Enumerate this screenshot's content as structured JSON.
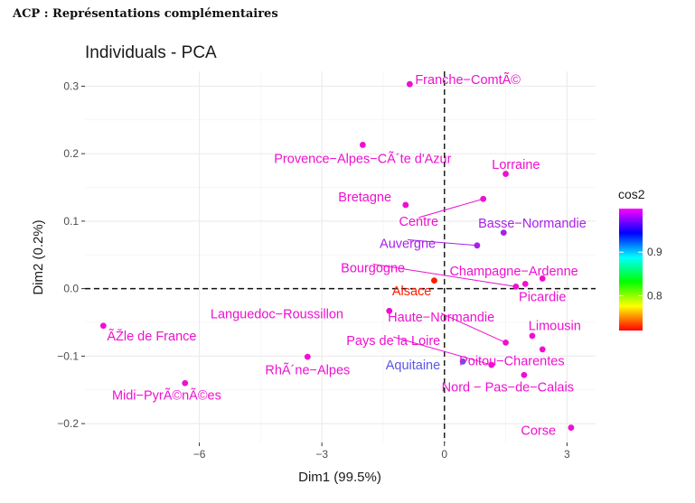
{
  "heading": "ACP : Représentations complémentaires",
  "chart_data": {
    "type": "scatter",
    "title": "Individuals - PCA",
    "xlabel": "Dim1 (99.5%)",
    "ylabel": "Dim2 (0.2%)",
    "xlim": [
      -8.8,
      3.7
    ],
    "ylim": [
      -0.228,
      0.322
    ],
    "xticks": [
      -6,
      -3,
      0,
      3
    ],
    "xtick_labels": [
      "−6",
      "−3",
      "0",
      "3"
    ],
    "yticks": [
      -0.2,
      -0.1,
      0.0,
      0.1,
      0.2,
      0.3
    ],
    "ytick_labels": [
      "−0.2",
      "−0.1",
      "0.0",
      "0.1",
      "0.2",
      "0.3"
    ],
    "grid": true,
    "reference_lines": {
      "x": 0,
      "y": 0,
      "style": "dashed"
    },
    "legend": {
      "title": "cos2",
      "position": "right",
      "range": [
        0.72,
        1.0
      ],
      "ticks": [
        0.8,
        0.9
      ],
      "tick_labels": [
        "0.8",
        "0.9"
      ],
      "gradient": [
        "#FF0000",
        "#FFFF00",
        "#00FF00",
        "#00FFFF",
        "#0000FF",
        "#FF00FF"
      ]
    },
    "points": [
      {
        "name": "Franche−ComtÃ©",
        "x": -0.85,
        "y": 0.303,
        "color": "#ee10d0",
        "lx": -0.85,
        "ly": 0.31,
        "anchor": "start",
        "dx": 6
      },
      {
        "name": "Provence−Alpes−CÃ´te d'Azur",
        "x": -2.0,
        "y": 0.213,
        "color": "#ee10d0",
        "lx": -2.0,
        "ly": 0.193,
        "anchor": "middle",
        "dx": 0
      },
      {
        "name": "Lorraine",
        "x": 1.5,
        "y": 0.17,
        "color": "#ee10d0",
        "lx": 1.75,
        "ly": 0.184,
        "anchor": "middle",
        "dx": 0
      },
      {
        "name": "Bretagne",
        "x": -0.95,
        "y": 0.124,
        "color": "#ee10d0",
        "lx": -1.95,
        "ly": 0.136,
        "anchor": "middle",
        "dx": 0
      },
      {
        "name": "Centre",
        "x": 0.95,
        "y": 0.133,
        "color": "#ee10d0",
        "lx": -0.63,
        "ly": 0.1,
        "anchor": "middle",
        "dx": 0,
        "leader": true
      },
      {
        "name": "Basse−Normandie",
        "x": 1.45,
        "y": 0.083,
        "color": "#aa20e8",
        "lx": 2.15,
        "ly": 0.097,
        "anchor": "middle",
        "dx": 0
      },
      {
        "name": "Auvergne",
        "x": 0.8,
        "y": 0.064,
        "color": "#aa20e8",
        "lx": -0.9,
        "ly": 0.067,
        "anchor": "middle",
        "dx": 0,
        "leader": true
      },
      {
        "name": "Bourgogne",
        "x": 1.75,
        "y": 0.003,
        "color": "#ee10d0",
        "lx": -1.75,
        "ly": 0.031,
        "anchor": "middle",
        "dx": 0,
        "leader": true
      },
      {
        "name": "Champagne−Ardenne",
        "x": 1.98,
        "y": 0.007,
        "color": "#ee10d0",
        "lx": 1.7,
        "ly": 0.026,
        "anchor": "middle",
        "dx": 0
      },
      {
        "name": "Alsace",
        "x": -0.25,
        "y": 0.012,
        "color": "#ff1a00",
        "lx": -0.8,
        "ly": -0.003,
        "anchor": "middle",
        "dx": 0
      },
      {
        "name": "Picardie",
        "x": 2.4,
        "y": 0.015,
        "color": "#ee10d0",
        "lx": 2.4,
        "ly": -0.012,
        "anchor": "middle",
        "dx": 0
      },
      {
        "name": "Languedoc−Roussillon",
        "x": -1.35,
        "y": -0.033,
        "color": "#ee10d0",
        "lx": -4.1,
        "ly": -0.037,
        "anchor": "middle",
        "dx": 0
      },
      {
        "name": "Haute−Normandie",
        "x": 1.5,
        "y": -0.08,
        "color": "#ee10d0",
        "lx": -0.08,
        "ly": -0.042,
        "anchor": "middle",
        "dx": 0,
        "leader": true
      },
      {
        "name": "Limousin",
        "x": 2.15,
        "y": -0.07,
        "color": "#ee10d0",
        "lx": 2.7,
        "ly": -0.055,
        "anchor": "middle",
        "dx": 0
      },
      {
        "name": "ÃŽle de France",
        "x": -8.35,
        "y": -0.055,
        "color": "#ee10d0",
        "lx": -8.35,
        "ly": -0.07,
        "anchor": "start",
        "dx": 4
      },
      {
        "name": "Pays de la Loire",
        "x": 1.15,
        "y": -0.113,
        "color": "#ee10d0",
        "lx": -1.25,
        "ly": -0.077,
        "anchor": "middle",
        "dx": 0,
        "leader": true
      },
      {
        "name": "Poitou−Charentes",
        "x": 2.4,
        "y": -0.09,
        "color": "#ee10d0",
        "lx": 1.65,
        "ly": -0.107,
        "anchor": "middle",
        "dx": 0
      },
      {
        "name": "RhÃ´ne−Alpes",
        "x": -3.35,
        "y": -0.101,
        "color": "#ee10d0",
        "lx": -3.35,
        "ly": -0.12,
        "anchor": "middle",
        "dx": 0
      },
      {
        "name": "Aquitaine",
        "x": 0.45,
        "y": -0.108,
        "color": "#5a55e8",
        "lx": -0.77,
        "ly": -0.113,
        "anchor": "middle",
        "dx": 0
      },
      {
        "name": "Nord − Pas−de−Calais",
        "x": 1.95,
        "y": -0.128,
        "color": "#ee10d0",
        "lx": 1.55,
        "ly": -0.146,
        "anchor": "middle",
        "dx": 0
      },
      {
        "name": "Midi−PyrÃ©nÃ©es",
        "x": -6.35,
        "y": -0.14,
        "color": "#ee10d0",
        "lx": -6.8,
        "ly": -0.158,
        "anchor": "middle",
        "dx": 0
      },
      {
        "name": "Corse",
        "x": 3.1,
        "y": -0.206,
        "color": "#ee10d0",
        "lx": 2.3,
        "ly": -0.21,
        "anchor": "middle",
        "dx": 0
      }
    ]
  }
}
